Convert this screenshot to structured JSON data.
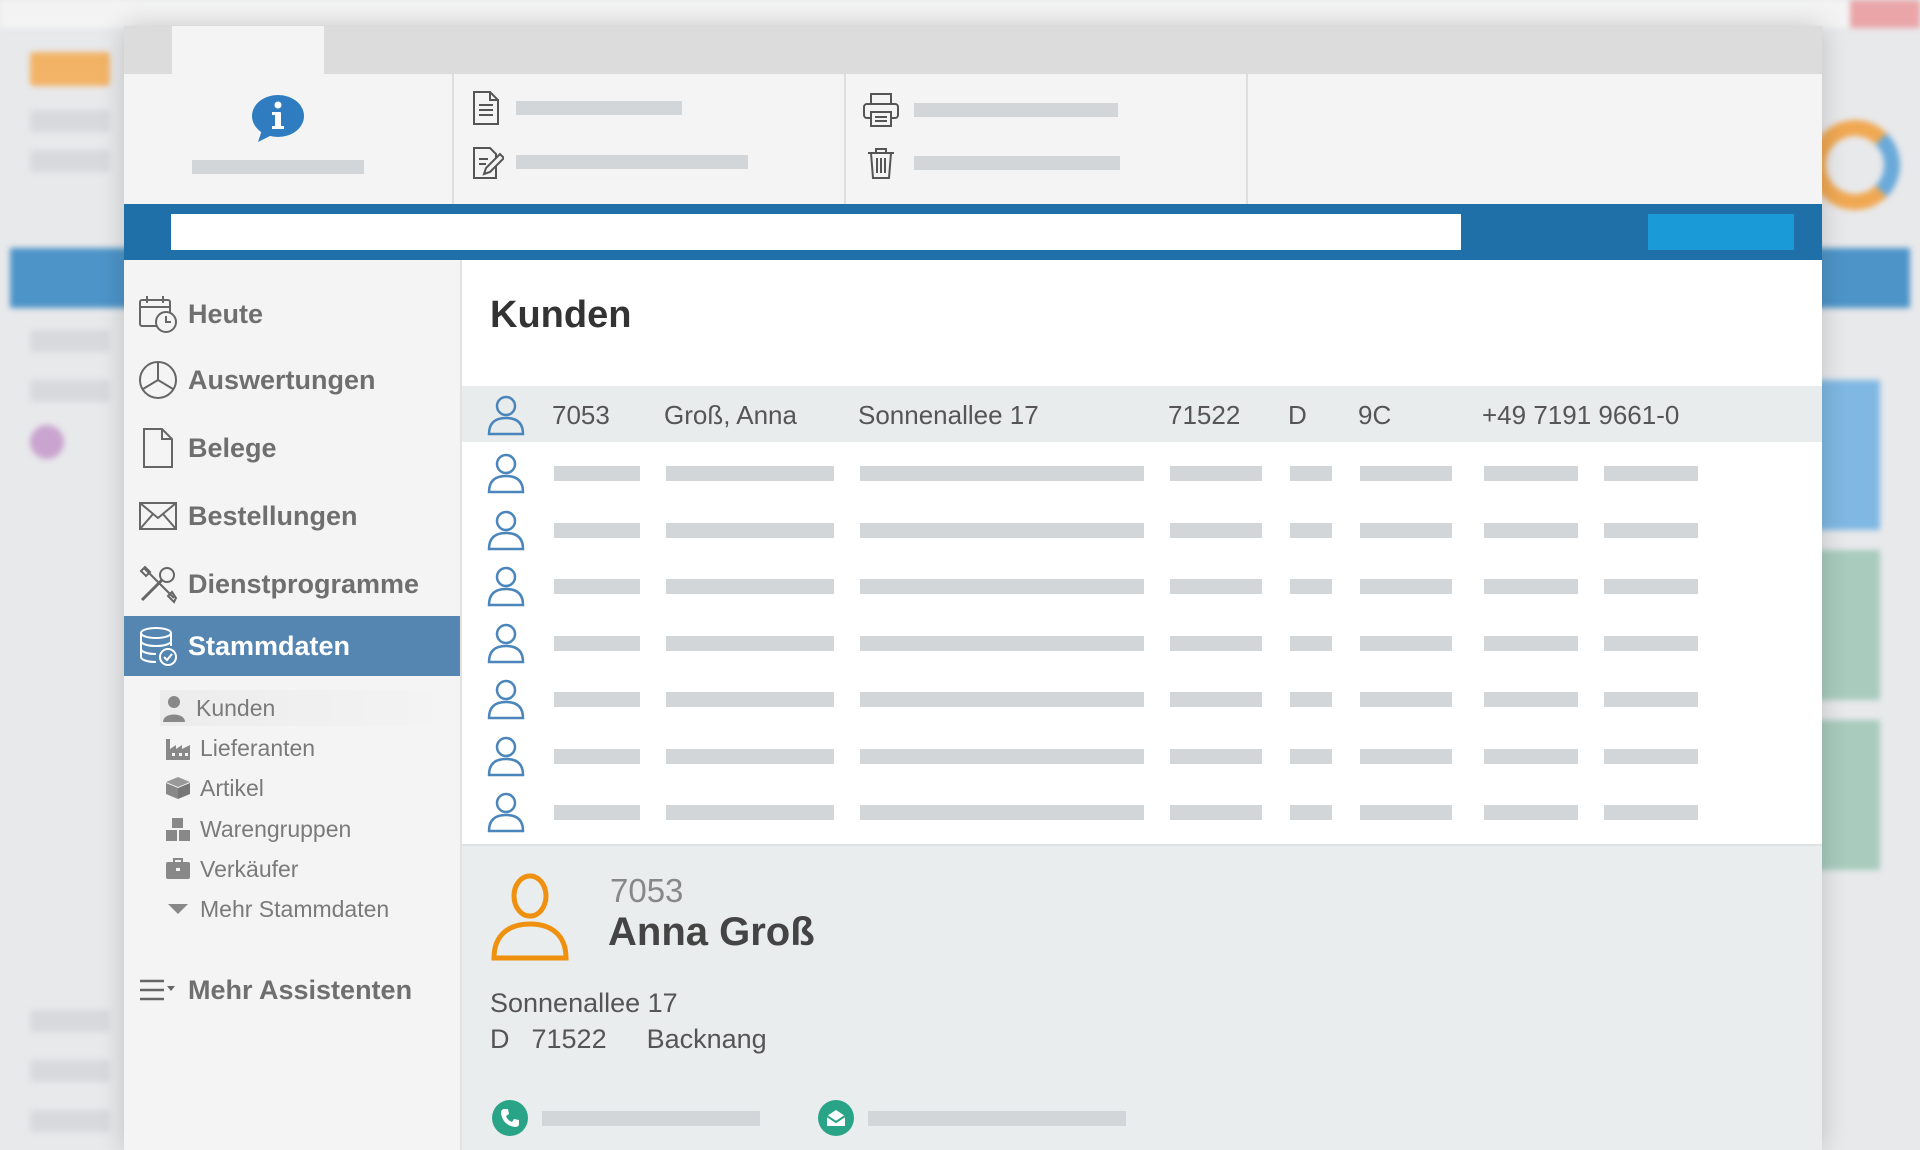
{
  "sidebar": {
    "items": [
      {
        "label": "Heute",
        "icon": "calendar-clock-icon"
      },
      {
        "label": "Auswertungen",
        "icon": "pie-chart-icon"
      },
      {
        "label": "Belege",
        "icon": "document-icon"
      },
      {
        "label": "Bestellungen",
        "icon": "envelope-icon"
      },
      {
        "label": "Dienstprogramme",
        "icon": "tools-icon"
      },
      {
        "label": "Stammdaten",
        "icon": "database-icon",
        "active": true
      }
    ],
    "sub_items": [
      {
        "label": "Kunden",
        "icon": "user-icon"
      },
      {
        "label": "Lieferanten",
        "icon": "factory-icon"
      },
      {
        "label": "Artikel",
        "icon": "box-icon"
      },
      {
        "label": "Warengruppen",
        "icon": "boxes-icon"
      },
      {
        "label": "Verkäufer",
        "icon": "briefcase-icon"
      },
      {
        "label": "Mehr Stammdaten",
        "icon": "caret-down-icon"
      }
    ],
    "more_label": "Mehr Assistenten"
  },
  "main": {
    "title": "Kunden",
    "selected_row": {
      "id": "7053",
      "name": "Groß, Anna",
      "street": "Sonnenallee 17",
      "zip": "71522",
      "country": "D",
      "code": "9C",
      "phone": "+49 7191 9661-0"
    },
    "placeholder_row_count": 7
  },
  "detail": {
    "id": "7053",
    "name": "Anna Groß",
    "street": "Sonnenallee 17",
    "country": "D",
    "zip": "71522",
    "city": "Backnang"
  },
  "colors": {
    "accent_blue": "#1f6fa8",
    "active_nav": "#5586b2",
    "avatar_orange": "#f0900f",
    "contact_green": "#2aa487"
  }
}
